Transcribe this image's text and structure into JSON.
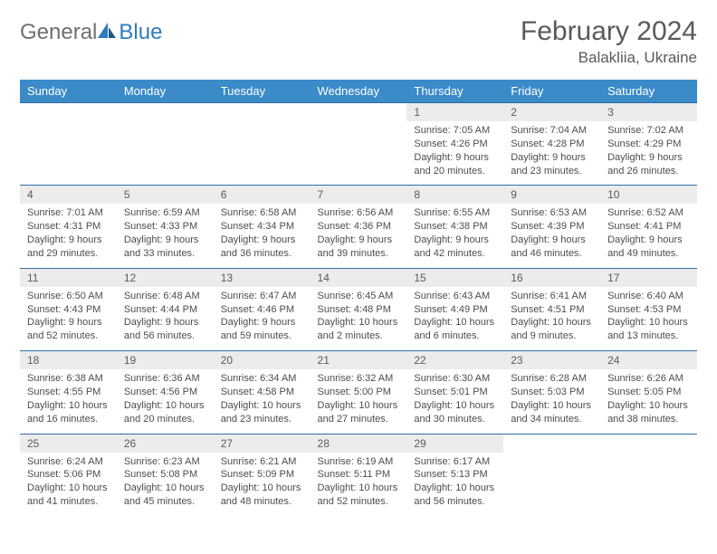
{
  "brand": {
    "part1": "General",
    "part2": "Blue"
  },
  "title": "February 2024",
  "location": "Balakliia, Ukraine",
  "colors": {
    "header_bg": "#3b8bc9",
    "row_border": "#2f6fa8",
    "daynum_bg": "#ececec",
    "text_muted": "#5a5a5a",
    "brand_gray": "#6f6f6f",
    "brand_blue": "#2f7bbf",
    "body_text": "#4d4d4d",
    "page_bg": "#ffffff"
  },
  "typography": {
    "title_fontsize": 30,
    "location_fontsize": 17,
    "header_th_fontsize": 13,
    "daynum_fontsize": 12,
    "cell_fontsize": 11
  },
  "day_headers": [
    "Sunday",
    "Monday",
    "Tuesday",
    "Wednesday",
    "Thursday",
    "Friday",
    "Saturday"
  ],
  "weeks": [
    [
      null,
      null,
      null,
      null,
      {
        "n": "1",
        "sr": "Sunrise: 7:05 AM",
        "ss": "Sunset: 4:26 PM",
        "d1": "Daylight: 9 hours",
        "d2": "and 20 minutes."
      },
      {
        "n": "2",
        "sr": "Sunrise: 7:04 AM",
        "ss": "Sunset: 4:28 PM",
        "d1": "Daylight: 9 hours",
        "d2": "and 23 minutes."
      },
      {
        "n": "3",
        "sr": "Sunrise: 7:02 AM",
        "ss": "Sunset: 4:29 PM",
        "d1": "Daylight: 9 hours",
        "d2": "and 26 minutes."
      }
    ],
    [
      {
        "n": "4",
        "sr": "Sunrise: 7:01 AM",
        "ss": "Sunset: 4:31 PM",
        "d1": "Daylight: 9 hours",
        "d2": "and 29 minutes."
      },
      {
        "n": "5",
        "sr": "Sunrise: 6:59 AM",
        "ss": "Sunset: 4:33 PM",
        "d1": "Daylight: 9 hours",
        "d2": "and 33 minutes."
      },
      {
        "n": "6",
        "sr": "Sunrise: 6:58 AM",
        "ss": "Sunset: 4:34 PM",
        "d1": "Daylight: 9 hours",
        "d2": "and 36 minutes."
      },
      {
        "n": "7",
        "sr": "Sunrise: 6:56 AM",
        "ss": "Sunset: 4:36 PM",
        "d1": "Daylight: 9 hours",
        "d2": "and 39 minutes."
      },
      {
        "n": "8",
        "sr": "Sunrise: 6:55 AM",
        "ss": "Sunset: 4:38 PM",
        "d1": "Daylight: 9 hours",
        "d2": "and 42 minutes."
      },
      {
        "n": "9",
        "sr": "Sunrise: 6:53 AM",
        "ss": "Sunset: 4:39 PM",
        "d1": "Daylight: 9 hours",
        "d2": "and 46 minutes."
      },
      {
        "n": "10",
        "sr": "Sunrise: 6:52 AM",
        "ss": "Sunset: 4:41 PM",
        "d1": "Daylight: 9 hours",
        "d2": "and 49 minutes."
      }
    ],
    [
      {
        "n": "11",
        "sr": "Sunrise: 6:50 AM",
        "ss": "Sunset: 4:43 PM",
        "d1": "Daylight: 9 hours",
        "d2": "and 52 minutes."
      },
      {
        "n": "12",
        "sr": "Sunrise: 6:48 AM",
        "ss": "Sunset: 4:44 PM",
        "d1": "Daylight: 9 hours",
        "d2": "and 56 minutes."
      },
      {
        "n": "13",
        "sr": "Sunrise: 6:47 AM",
        "ss": "Sunset: 4:46 PM",
        "d1": "Daylight: 9 hours",
        "d2": "and 59 minutes."
      },
      {
        "n": "14",
        "sr": "Sunrise: 6:45 AM",
        "ss": "Sunset: 4:48 PM",
        "d1": "Daylight: 10 hours",
        "d2": "and 2 minutes."
      },
      {
        "n": "15",
        "sr": "Sunrise: 6:43 AM",
        "ss": "Sunset: 4:49 PM",
        "d1": "Daylight: 10 hours",
        "d2": "and 6 minutes."
      },
      {
        "n": "16",
        "sr": "Sunrise: 6:41 AM",
        "ss": "Sunset: 4:51 PM",
        "d1": "Daylight: 10 hours",
        "d2": "and 9 minutes."
      },
      {
        "n": "17",
        "sr": "Sunrise: 6:40 AM",
        "ss": "Sunset: 4:53 PM",
        "d1": "Daylight: 10 hours",
        "d2": "and 13 minutes."
      }
    ],
    [
      {
        "n": "18",
        "sr": "Sunrise: 6:38 AM",
        "ss": "Sunset: 4:55 PM",
        "d1": "Daylight: 10 hours",
        "d2": "and 16 minutes."
      },
      {
        "n": "19",
        "sr": "Sunrise: 6:36 AM",
        "ss": "Sunset: 4:56 PM",
        "d1": "Daylight: 10 hours",
        "d2": "and 20 minutes."
      },
      {
        "n": "20",
        "sr": "Sunrise: 6:34 AM",
        "ss": "Sunset: 4:58 PM",
        "d1": "Daylight: 10 hours",
        "d2": "and 23 minutes."
      },
      {
        "n": "21",
        "sr": "Sunrise: 6:32 AM",
        "ss": "Sunset: 5:00 PM",
        "d1": "Daylight: 10 hours",
        "d2": "and 27 minutes."
      },
      {
        "n": "22",
        "sr": "Sunrise: 6:30 AM",
        "ss": "Sunset: 5:01 PM",
        "d1": "Daylight: 10 hours",
        "d2": "and 30 minutes."
      },
      {
        "n": "23",
        "sr": "Sunrise: 6:28 AM",
        "ss": "Sunset: 5:03 PM",
        "d1": "Daylight: 10 hours",
        "d2": "and 34 minutes."
      },
      {
        "n": "24",
        "sr": "Sunrise: 6:26 AM",
        "ss": "Sunset: 5:05 PM",
        "d1": "Daylight: 10 hours",
        "d2": "and 38 minutes."
      }
    ],
    [
      {
        "n": "25",
        "sr": "Sunrise: 6:24 AM",
        "ss": "Sunset: 5:06 PM",
        "d1": "Daylight: 10 hours",
        "d2": "and 41 minutes."
      },
      {
        "n": "26",
        "sr": "Sunrise: 6:23 AM",
        "ss": "Sunset: 5:08 PM",
        "d1": "Daylight: 10 hours",
        "d2": "and 45 minutes."
      },
      {
        "n": "27",
        "sr": "Sunrise: 6:21 AM",
        "ss": "Sunset: 5:09 PM",
        "d1": "Daylight: 10 hours",
        "d2": "and 48 minutes."
      },
      {
        "n": "28",
        "sr": "Sunrise: 6:19 AM",
        "ss": "Sunset: 5:11 PM",
        "d1": "Daylight: 10 hours",
        "d2": "and 52 minutes."
      },
      {
        "n": "29",
        "sr": "Sunrise: 6:17 AM",
        "ss": "Sunset: 5:13 PM",
        "d1": "Daylight: 10 hours",
        "d2": "and 56 minutes."
      },
      null,
      null
    ]
  ]
}
